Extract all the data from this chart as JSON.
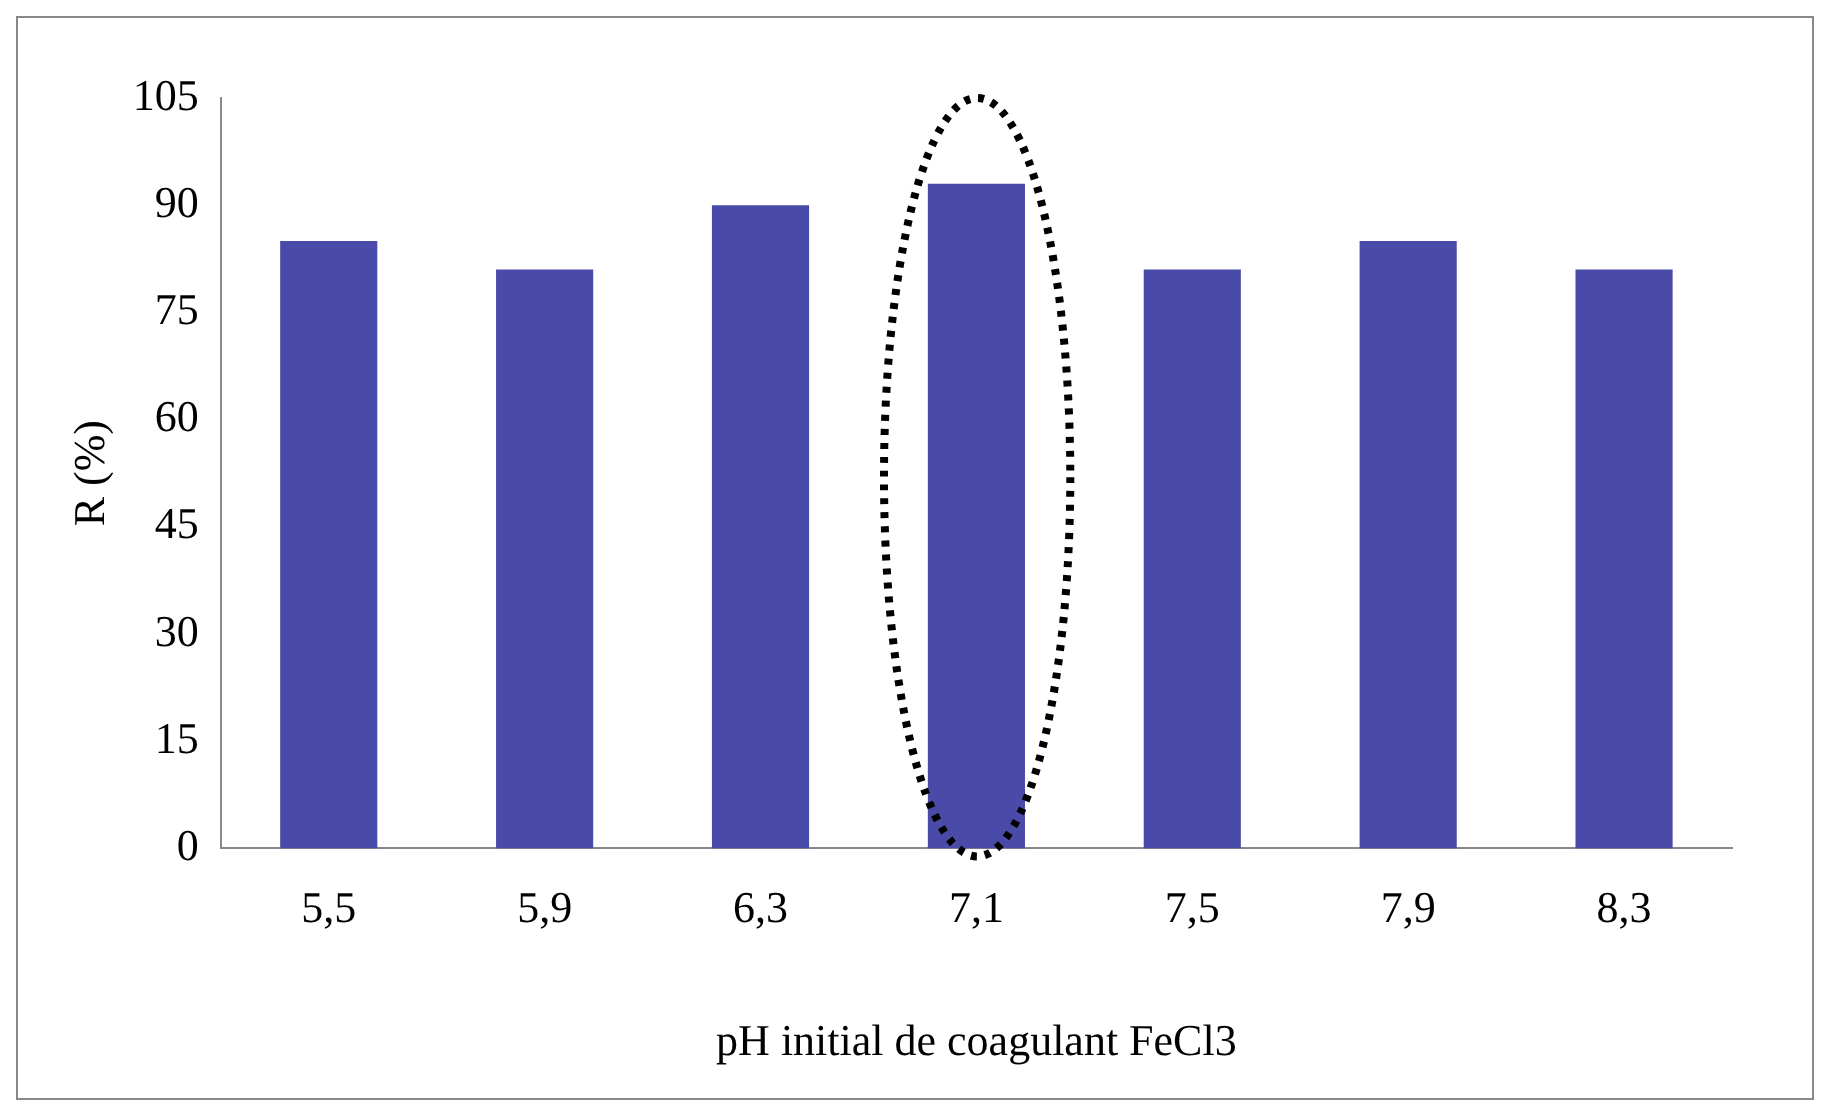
{
  "chart_data": {
    "type": "bar",
    "xlabel": "pH initial de coagulant FeCl3",
    "ylabel": "R (%)",
    "categories": [
      "5,5",
      "5,9",
      "6,3",
      "7,1",
      "7,5",
      "7,9",
      "8,3"
    ],
    "values": [
      85,
      81,
      90,
      93,
      81,
      85,
      81
    ],
    "color": "#4a4aa8",
    "ylim": [
      0,
      105
    ],
    "yticks": [
      0,
      15,
      30,
      45,
      60,
      75,
      90,
      105
    ],
    "grid": false,
    "legend": false
  }
}
